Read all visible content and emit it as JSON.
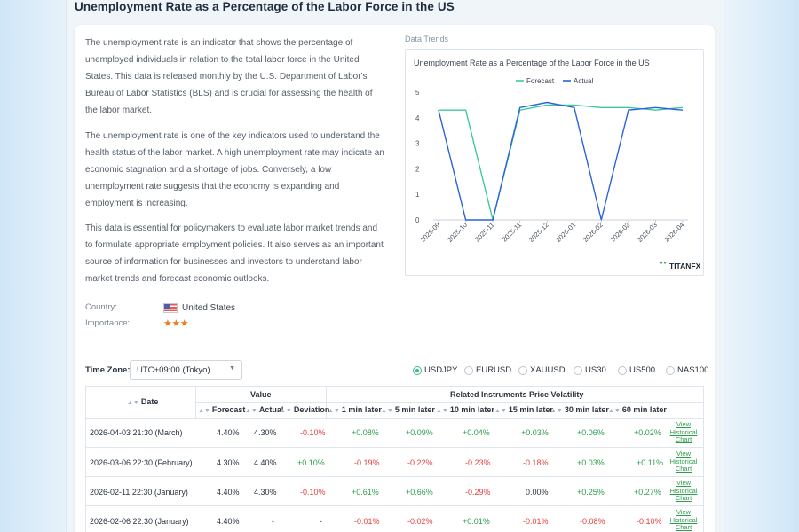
{
  "page_title": "Unemployment Rate as a Percentage of the Labor Force in the US",
  "description": [
    "The unemployment rate is an indicator that shows the percentage of unemployed individuals in relation to the total labor force in the United States. This data is released monthly by the U.S. Department of Labor's Bureau of Labor Statistics (BLS) and is crucial for assessing the health of the labor market.",
    "The unemployment rate is one of the key indicators used to understand the health status of the labor market. A high unemployment rate may indicate an economic stagnation and a shortage of jobs. Conversely, a low unemployment rate suggests that the economy is expanding and employment is increasing.",
    "This data is essential for policymakers to evaluate labor market trends and to formulate appropriate employment policies. It also serves as an important source of information for businesses and investors to understand labor market trends and forecast economic outlooks."
  ],
  "meta": {
    "country_label": "Country:",
    "country_value": "United States",
    "importance_label": "Importance:",
    "importance_stars": "★★★",
    "importance_level": 3
  },
  "trend_label": "Data Trends",
  "brand": "TITANFX",
  "chart_data": {
    "type": "line",
    "title": "Unemployment Rate as a Percentage of the Labor Force in the US",
    "x": [
      "2025-09",
      "2025-10",
      "2025-11",
      "2025-11",
      "2025-12",
      "2026-01",
      "2026-02",
      "2026-02",
      "2026-03",
      "2026-04"
    ],
    "series": [
      {
        "name": "Forecast",
        "color": "#3fc99a",
        "values": [
          4.3,
          4.3,
          0,
          4.3,
          4.5,
          4.5,
          4.4,
          4.4,
          4.3,
          4.4
        ]
      },
      {
        "name": "Actual",
        "color": "#2b63d9",
        "values": [
          4.3,
          0,
          0,
          4.4,
          4.6,
          4.4,
          0,
          4.3,
          4.4,
          4.3
        ]
      }
    ],
    "ylim": [
      0,
      5
    ],
    "yticks": [
      "0",
      "1",
      "2",
      "3",
      "4",
      "5"
    ],
    "grid": false,
    "legend": "top-center"
  },
  "timezone": {
    "label": "Time Zone:",
    "value": "UTC+09:00 (Tokyo)"
  },
  "instruments": [
    {
      "label": "USDJPY",
      "selected": true
    },
    {
      "label": "EURUSD",
      "selected": false
    },
    {
      "label": "XAUUSD",
      "selected": false
    },
    {
      "label": "US30",
      "selected": false
    },
    {
      "label": "US500",
      "selected": false
    },
    {
      "label": "NAS100",
      "selected": false
    }
  ],
  "table": {
    "date_header": "Date",
    "value_group": "Value",
    "volatility_group": "Related Instruments Price Volatility",
    "value_columns": [
      "Forecast",
      "Actual",
      "Deviation"
    ],
    "volatility_columns": [
      "1 min later",
      "5 min later",
      "10 min later",
      "15 min later",
      "30 min later",
      "60 min later"
    ],
    "link_lines": [
      "View",
      "Historical",
      "Chart"
    ],
    "rows": [
      {
        "date": "2026-04-03 21:30 (March)",
        "forecast": "4.40%",
        "actual": "4.30%",
        "deviation": "-0.10%",
        "vol": [
          "+0.08%",
          "+0.09%",
          "+0.04%",
          "+0.03%",
          "+0.06%",
          "+0.02%"
        ]
      },
      {
        "date": "2026-03-06 22:30 (February)",
        "forecast": "4.30%",
        "actual": "4.40%",
        "deviation": "+0.10%",
        "vol": [
          "-0.19%",
          "-0.22%",
          "-0.23%",
          "-0.18%",
          "+0.03%",
          "+0.11%"
        ]
      },
      {
        "date": "2026-02-11 22:30 (January)",
        "forecast": "4.40%",
        "actual": "4.30%",
        "deviation": "-0.10%",
        "vol": [
          "+0.61%",
          "+0.66%",
          "-0.29%",
          "0.00%",
          "+0.25%",
          "+0.27%"
        ]
      },
      {
        "date": "2026-02-06 22:30 (January)",
        "forecast": "4.40%",
        "actual": "-",
        "deviation": "-",
        "vol": [
          "-0.01%",
          "-0.02%",
          "+0.01%",
          "-0.01%",
          "-0.08%",
          "-0.10%"
        ]
      }
    ]
  }
}
